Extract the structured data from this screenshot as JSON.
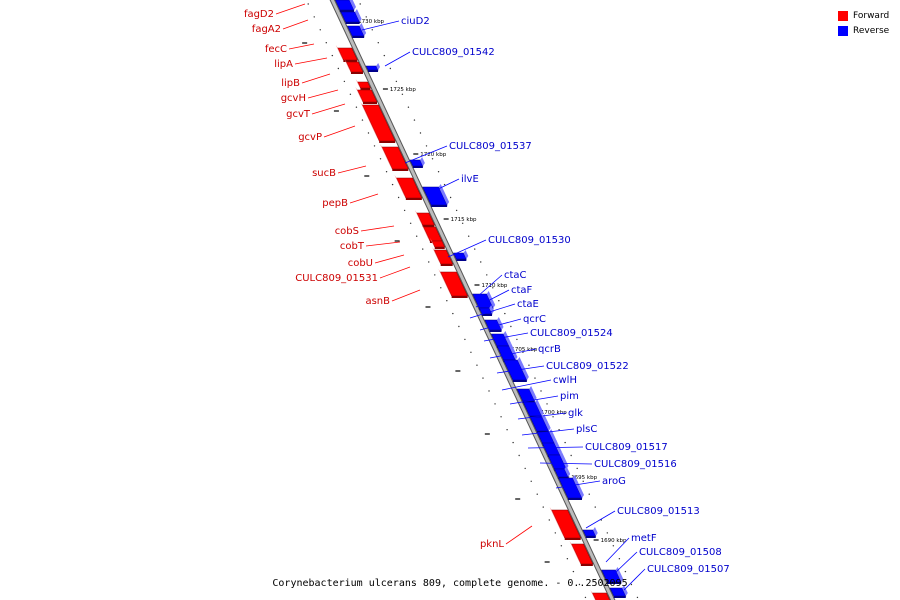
{
  "legend": {
    "forward_label": "Forward",
    "reverse_label": "Reverse",
    "forward_color": "#ff0000",
    "reverse_color": "#0000ff"
  },
  "caption": "Corynebacterium ulcerans 809, complete genome. - 0..2502095",
  "ticks": [
    "1730 kbp",
    "1725 kbp",
    "1720 kbp",
    "1715 kbp",
    "1710 kbp",
    "1705 kbp",
    "1700 kbp",
    "1695 kbp",
    "1690 kbp"
  ],
  "forward_genes": [
    "fagD2",
    "fagA2",
    "fecC",
    "lipA",
    "lipB",
    "gcvH",
    "gcvT",
    "gcvP",
    "sucB",
    "pepB",
    "cobS",
    "cobT",
    "cobU",
    "CULC809_01531",
    "asnB",
    "pknL"
  ],
  "reverse_genes": [
    "ciuD2",
    "CULC809_01542",
    "CULC809_01537",
    "ilvE",
    "CULC809_01530",
    "ctaC",
    "ctaF",
    "ctaE",
    "qcrC",
    "CULC809_01524",
    "qcrB",
    "CULC809_01522",
    "cwlH",
    "pim",
    "glk",
    "plsC",
    "CULC809_01517",
    "CULC809_01516",
    "aroG",
    "CULC809_01513",
    "metF",
    "CULC809_01508",
    "CULC809_01507"
  ]
}
